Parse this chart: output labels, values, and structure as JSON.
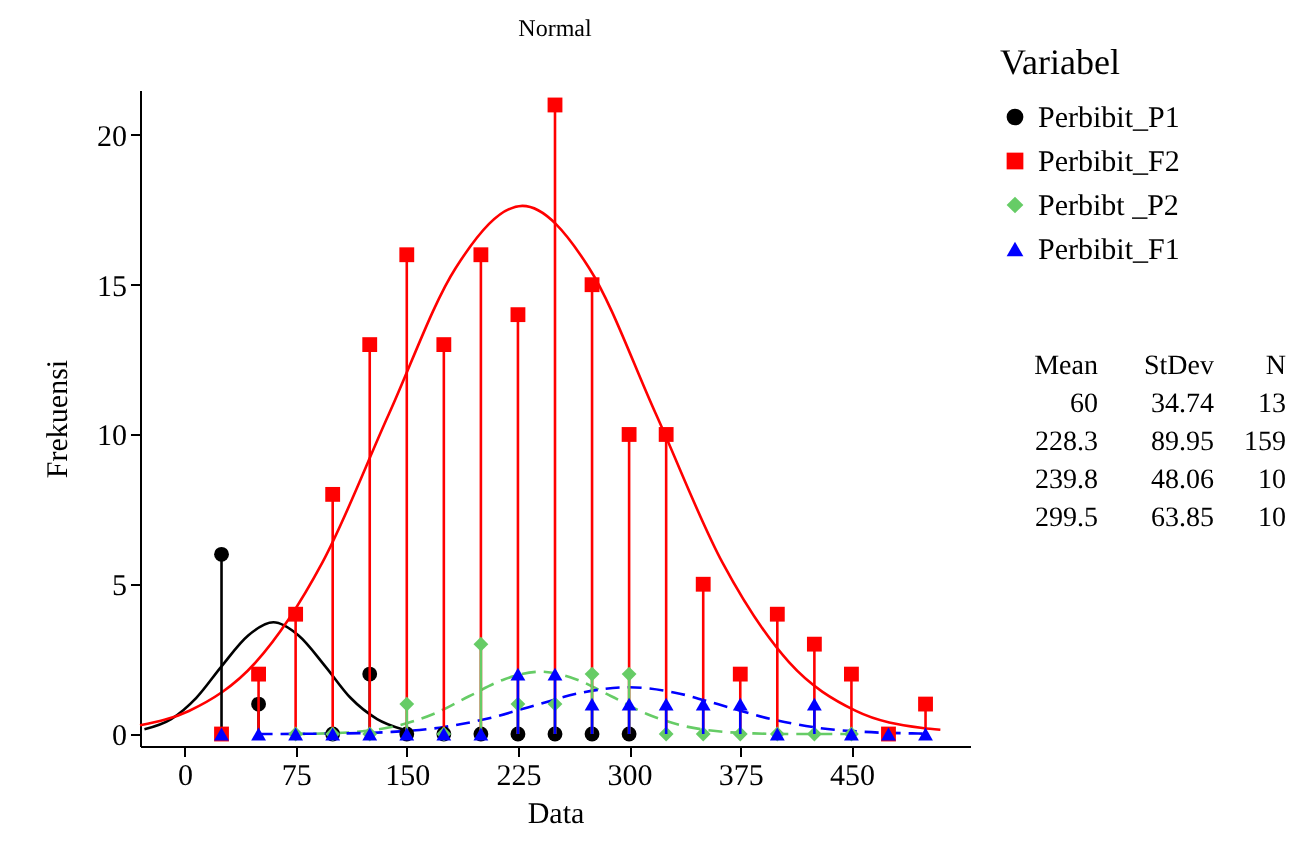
{
  "chart_data": {
    "type": "lollipop",
    "title": "Normal",
    "xlabel": "Data",
    "ylabel": "Frekuensi",
    "legend_title": "Variabel",
    "legend": "top right",
    "grid": false,
    "xlim": [
      -30,
      530
    ],
    "xticks": [
      0,
      75,
      150,
      225,
      300,
      375,
      450
    ],
    "ylim": [
      -0.4,
      21.5
    ],
    "yticks": [
      0,
      5,
      10,
      15,
      20
    ],
    "annotations": [
      "Mean",
      "StDev",
      "N",
      "60",
      "34.74",
      "13",
      "228.3",
      "89.95",
      "159",
      "239.8",
      "48.06",
      "10",
      "299.5",
      "63.85",
      "10"
    ],
    "series": [
      {
        "type": "line",
        "color": "#000000",
        "line_style": "solid",
        "x": [
          -27,
          -9,
          8,
          25,
          43,
          60,
          77,
          95,
          112,
          130,
          147
        ],
        "values": [
          0.16,
          0.5,
          1.21,
          2.26,
          3.29,
          3.73,
          3.29,
          2.26,
          1.21,
          0.5,
          0.16
        ]
      },
      {
        "type": "line",
        "color": "#ff0000",
        "line_style": "solid",
        "x": [
          -30,
          3,
          48,
          93,
          138,
          183,
          228,
          273,
          318,
          363,
          408,
          453,
          498,
          510
        ],
        "values": [
          0.29,
          0.77,
          2.39,
          5.72,
          10.69,
          15.56,
          17.63,
          15.56,
          10.69,
          5.72,
          2.39,
          0.77,
          0.2,
          0.14
        ]
      },
      {
        "type": "line",
        "color": "#66cc66",
        "line_style": "dashed",
        "x": [
          72,
          96,
          120,
          144,
          168,
          192,
          216,
          240,
          264,
          288,
          312,
          336,
          360,
          384,
          408,
          450
        ],
        "values": [
          0,
          0.02,
          0.09,
          0.28,
          0.67,
          1.26,
          1.83,
          2.08,
          1.83,
          1.26,
          0.67,
          0.28,
          0.09,
          0.02,
          0,
          0
        ]
      },
      {
        "type": "line",
        "color": "#0000ff",
        "line_style": "dashed",
        "x": [
          50,
          108,
          140,
          172,
          204,
          236,
          268,
          300,
          331,
          363,
          395,
          427,
          459,
          491,
          500
        ],
        "values": [
          0,
          0.02,
          0.07,
          0.21,
          0.51,
          0.95,
          1.38,
          1.56,
          1.38,
          0.95,
          0.51,
          0.21,
          0.07,
          0.02,
          0.01
        ]
      },
      {
        "name": "Perbibit_P1",
        "color": "#000000",
        "marker": "circle",
        "x": [
          25,
          50,
          75,
          100,
          125,
          150,
          175,
          200,
          225,
          250,
          275,
          300
        ],
        "values": [
          6,
          1,
          null,
          0,
          2,
          0,
          0,
          0,
          0,
          0,
          0,
          0
        ]
      },
      {
        "name": "Perbibit_F2",
        "color": "#ff0000",
        "marker": "square",
        "x": [
          25,
          50,
          75,
          100,
          125,
          150,
          175,
          200,
          225,
          250,
          275,
          300,
          325,
          350,
          375,
          400,
          425,
          450,
          475,
          500
        ],
        "values": [
          0,
          2,
          4,
          8,
          13,
          16,
          13,
          16,
          14,
          21,
          15,
          10,
          10,
          5,
          2,
          4,
          3,
          2,
          0,
          1
        ]
      },
      {
        "name": "Perbibt _P2",
        "color": "#66cc66",
        "marker": "diamond",
        "x": [
          75,
          100,
          125,
          150,
          175,
          200,
          225,
          250,
          275,
          300,
          325,
          350,
          375,
          400,
          425,
          450
        ],
        "values": [
          0,
          0,
          0,
          1,
          0,
          3,
          1,
          1,
          2,
          2,
          0,
          0,
          0,
          0,
          0,
          0
        ]
      },
      {
        "name": "Perbibit_F1",
        "color": "#0000ff",
        "marker": "triangle",
        "x": [
          25,
          50,
          75,
          100,
          125,
          150,
          175,
          200,
          225,
          250,
          275,
          300,
          325,
          350,
          375,
          400,
          425,
          450,
          475,
          500
        ],
        "values": [
          0,
          0,
          0,
          0,
          0,
          0,
          0,
          0,
          2,
          2,
          1,
          1,
          1,
          1,
          1,
          0,
          1,
          0,
          0,
          0
        ]
      }
    ]
  }
}
